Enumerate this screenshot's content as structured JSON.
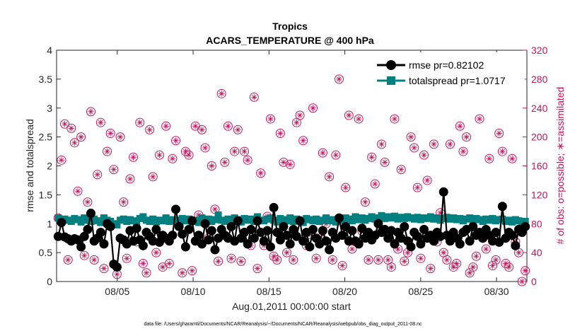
{
  "chart_data": {
    "type": "line",
    "title": "Tropics",
    "subtitle": "ACARS_TEMPERATURE @ 400 hPa",
    "xlabel": "Aug.01,2011 00:00:00 start",
    "ylabel": "rmse and totalspread",
    "y2label": "# of obs: o=possible; ∗=assimilated",
    "footnote": "data file: /Users/gharamti/Documents/NCAR/Reanalysis/~/Documents/NCAR/Reanalysis/webpub/obs_diag_output_2011-08.nc",
    "xlim": [
      1,
      32
    ],
    "ylim": [
      0,
      4
    ],
    "y2lim": [
      0,
      320
    ],
    "xticks": [
      5,
      10,
      15,
      20,
      25,
      30
    ],
    "xtick_labels": [
      "08/05",
      "08/10",
      "08/15",
      "08/20",
      "08/25",
      "08/30"
    ],
    "yticks": [
      0,
      0.5,
      1,
      1.5,
      2,
      2.5,
      3,
      3.5,
      4
    ],
    "ytick_labels": [
      "0",
      "0.5",
      "1",
      "1.5",
      "2",
      "2.5",
      "3",
      "3.5",
      "4"
    ],
    "y2ticks": [
      0,
      40,
      80,
      120,
      160,
      200,
      240,
      280,
      320
    ],
    "y2tick_labels": [
      "0",
      "40",
      "80",
      "120",
      "160",
      "200",
      "240",
      "280",
      "320"
    ],
    "legend_position": "top-right",
    "colors": {
      "rmse": "#000000",
      "totalspread": "#008080",
      "obs": "#c8145a"
    },
    "series": [
      {
        "name": "rmse pr=0.82102",
        "axis": "left",
        "values": [
          0.78,
          1.02,
          0.77,
          0.74,
          0.7,
          0.74,
          0.72,
          0.6,
          0.78,
          0.9,
          1.18,
          0.7,
          0.75,
          0.85,
          0.65,
          1.0,
          0.95,
          0.3,
          0.25,
          0.75,
          0.72,
          0.65,
          0.88,
          0.7,
          0.92,
          0.72,
          0.62,
          0.85,
          0.78,
          0.7,
          0.9,
          0.68,
          0.8,
          0.75,
          0.7,
          0.8,
          1.25,
          0.95,
          0.82,
          0.6,
          0.9,
          1.05,
          0.7,
          0.8,
          0.65,
          1.0,
          0.72,
          0.88,
          0.55,
          0.75,
          0.9,
          0.8,
          0.75,
          0.95,
          0.7,
          1.05,
          0.75,
          0.85,
          0.65,
          0.9,
          0.75,
          1.05,
          0.85,
          0.7,
          0.88,
          0.6,
          1.28,
          0.85,
          0.72,
          0.95,
          0.8,
          0.65,
          0.9,
          0.78,
          1.05,
          0.7,
          0.85,
          0.6,
          0.9,
          0.75,
          0.65,
          0.88,
          0.7,
          0.55,
          0.85,
          0.75,
          1.1,
          0.8,
          0.95,
          0.7,
          0.88,
          0.7,
          0.65,
          0.92,
          0.75,
          0.85,
          0.72,
          0.8,
          1.0,
          0.85,
          0.9,
          0.75,
          0.88,
          0.65,
          0.85,
          0.75,
          0.95,
          0.7,
          0.6,
          0.85,
          0.78,
          0.65,
          0.9,
          0.75,
          0.8,
          0.7,
          0.85,
          0.78,
          1.55,
          0.8,
          0.7,
          0.85,
          0.75,
          0.65,
          0.85,
          0.9,
          0.7,
          0.95,
          0.8,
          0.85,
          0.75,
          0.9,
          0.8,
          0.7,
          0.85,
          0.68,
          1.3,
          0.75,
          0.85,
          0.8,
          0.62,
          0.9,
          0.85,
          0.95
        ]
      },
      {
        "name": "totalspread pr=1.0717",
        "axis": "left",
        "values": [
          1.1,
          1.05,
          1.08,
          1.06,
          1.04,
          1.09,
          1.07,
          1.03,
          1.1,
          1.06,
          1.04,
          1.08,
          1.05,
          1.02,
          1.1,
          1.06,
          1.04,
          1.0,
          0.98,
          1.06,
          1.08,
          1.04,
          1.07,
          1.05,
          1.02,
          1.09,
          1.12,
          1.06,
          1.04,
          1.08,
          1.03,
          1.06,
          1.05,
          1.1,
          1.04,
          1.07,
          1.06,
          1.03,
          1.09,
          1.05,
          1.08,
          1.04,
          1.06,
          1.02,
          1.1,
          1.06,
          1.08,
          1.04,
          1.07,
          1.15,
          1.06,
          1.04,
          1.08,
          1.05,
          1.1,
          1.07,
          1.03,
          1.09,
          1.06,
          1.08,
          1.04,
          1.12,
          1.06,
          1.05,
          1.08,
          1.1,
          1.06,
          1.03,
          1.09,
          1.07,
          1.05,
          1.1,
          1.04,
          1.08,
          1.06,
          1.02,
          1.09,
          1.07,
          1.05,
          1.08,
          1.04,
          1.06,
          1.1,
          1.05,
          1.07,
          1.03,
          1.09,
          1.06,
          1.1,
          1.08,
          1.05,
          1.12,
          1.07,
          1.1,
          1.06,
          1.09,
          1.12,
          1.08,
          1.1,
          1.14,
          1.09,
          1.12,
          1.1,
          1.13,
          1.08,
          1.11,
          1.09,
          1.12,
          1.1,
          1.08,
          1.11,
          1.07,
          1.1,
          1.09,
          1.12,
          1.08,
          1.1,
          1.06,
          1.09,
          1.11,
          1.08,
          1.1,
          1.07,
          1.09,
          1.05,
          1.08,
          1.1,
          1.06,
          1.09,
          1.07,
          1.04,
          1.08,
          1.06,
          1.09,
          1.05,
          1.07,
          1.08,
          1.04,
          1.06,
          1.03,
          1.07,
          1.05,
          1.02,
          1.04
        ]
      }
    ],
    "obs_points": [
      {
        "name": "possible",
        "axis": "right",
        "marker": "circle"
      },
      {
        "name": "assimilated",
        "axis": "right",
        "marker": "star"
      }
    ],
    "obs_counts": [
      88,
      168,
      218,
      30,
      212,
      192,
      125,
      200,
      36,
      110,
      235,
      30,
      148,
      220,
      18,
      180,
      205,
      155,
      10,
      200,
      110,
      32,
      142,
      172,
      55,
      220,
      25,
      12,
      210,
      145,
      40,
      175,
      20,
      215,
      25,
      170,
      195,
      80,
      12,
      180,
      175,
      15,
      215,
      92,
      210,
      185,
      60,
      160,
      100,
      28,
      260,
      165,
      215,
      32,
      180,
      210,
      28,
      180,
      168,
      50,
      255,
      18,
      150,
      50,
      90,
      225,
      35,
      30,
      205,
      165,
      40,
      162,
      30,
      220,
      230,
      195,
      50,
      65,
      240,
      32,
      60,
      178,
      80,
      145,
      30,
      175,
      280,
      22,
      130,
      230,
      45,
      55,
      225,
      70,
      110,
      30,
      172,
      135,
      30,
      190,
      165,
      30,
      20,
      225,
      45,
      155,
      28,
      40,
      200,
      185,
      130,
      32,
      175,
      140,
      18,
      190,
      55,
      95,
      40,
      30,
      190,
      20,
      25,
      215,
      180,
      200,
      12,
      20,
      35,
      225,
      60,
      45,
      170,
      22,
      30,
      205,
      180,
      25,
      20,
      170,
      55,
      40,
      0,
      15
    ]
  }
}
